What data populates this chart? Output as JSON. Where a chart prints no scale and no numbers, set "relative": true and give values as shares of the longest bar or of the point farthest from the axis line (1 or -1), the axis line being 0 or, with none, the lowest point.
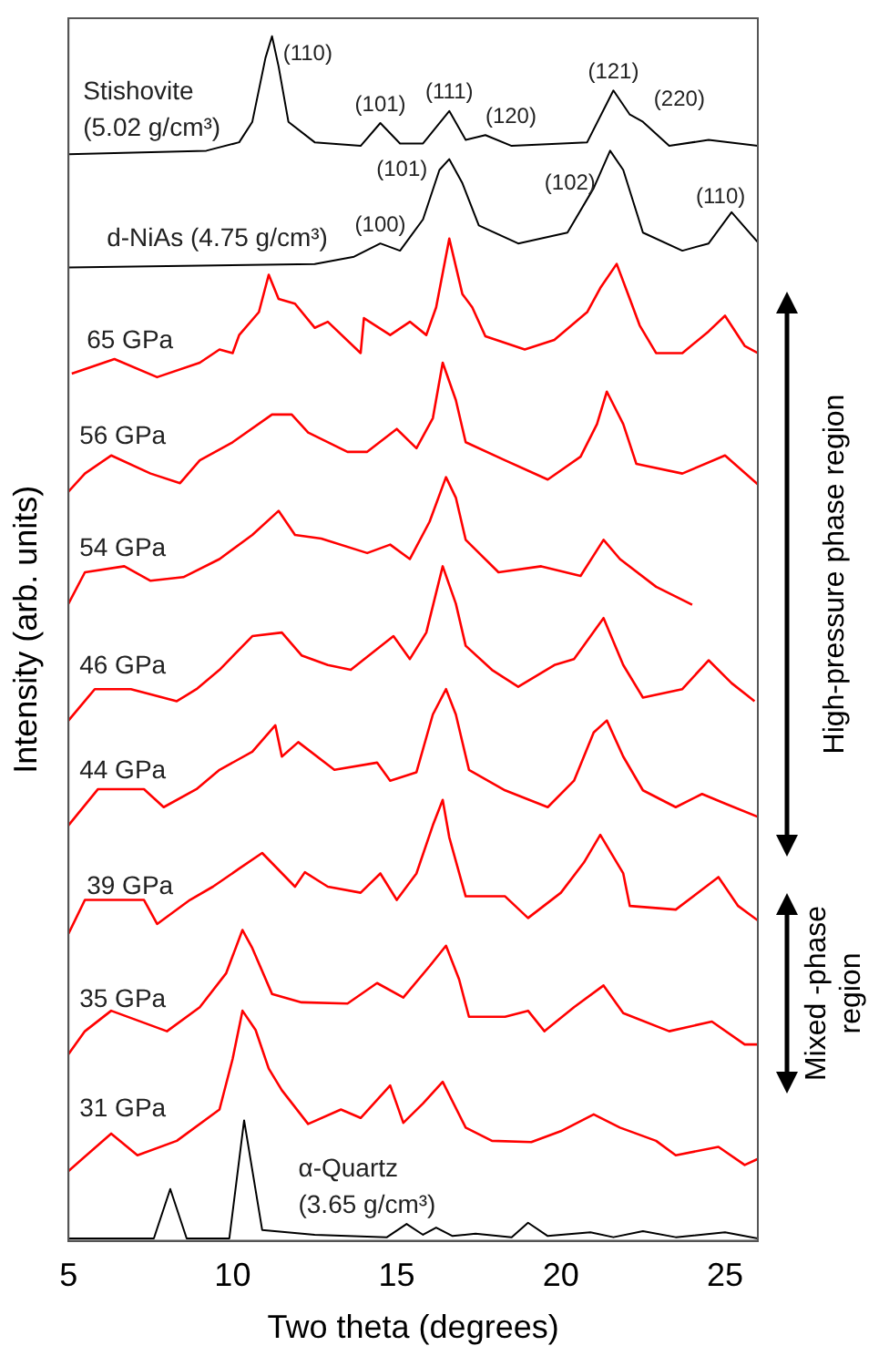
{
  "chart_data": {
    "type": "line",
    "relative": true,
    "xlabel": "Two theta (degrees)",
    "ylabel": "Intensity (arb. units)",
    "xlim": [
      5,
      26
    ],
    "xticks": [
      5,
      10,
      15,
      20,
      25
    ],
    "legend": false,
    "grid": false,
    "series": [
      {
        "name": "Stishovite\n(5.02 g/cm³)",
        "color": "#000000",
        "x": [
          5,
          9.2,
          10.2,
          10.6,
          11.0,
          11.2,
          11.4,
          11.7,
          12.5,
          13.9,
          14.5,
          15.1,
          15.8,
          16.6,
          17.1,
          17.7,
          18.5,
          20.8,
          21.6,
          22.1,
          22.5,
          23.3,
          24.5,
          26
        ],
        "values": [
          0.902,
          0.905,
          0.912,
          0.929,
          0.982,
          1,
          0.975,
          0.929,
          0.912,
          0.909,
          0.928,
          0.911,
          0.911,
          0.938,
          0.914,
          0.918,
          0.909,
          0.912,
          0.955,
          0.935,
          0.929,
          0.909,
          0.914,
          0.909
        ]
      },
      {
        "name": "d-NiAs (4.75 g/cm³)",
        "color": "#000000",
        "x": [
          5,
          12.5,
          13.7,
          14.5,
          15.1,
          15.8,
          16.3,
          16.6,
          17.0,
          17.5,
          18.7,
          20.2,
          21.0,
          21.5,
          21.9,
          22.5,
          23.7,
          24.5,
          25.2,
          26
        ],
        "values": [
          0.808,
          0.811,
          0.817,
          0.828,
          0.822,
          0.848,
          0.889,
          0.898,
          0.878,
          0.843,
          0.828,
          0.837,
          0.874,
          0.905,
          0.889,
          0.837,
          0.822,
          0.828,
          0.854,
          0.829
        ]
      },
      {
        "name": "65 GPa",
        "color": "#ff0000",
        "x": [
          5.1,
          6.4,
          7.7,
          9.0,
          9.6,
          10.0,
          10.2,
          10.8,
          11.1,
          11.4,
          11.9,
          12.5,
          12.9,
          13.9,
          14.0,
          14.8,
          15.4,
          15.9,
          16.2,
          16.6,
          17.0,
          17.3,
          17.7,
          18.9,
          19.8,
          20.8,
          21.2,
          21.7,
          22.1,
          22.4,
          22.9,
          23.7,
          24.5,
          25.0,
          25.6,
          26.0
        ],
        "values": [
          0.72,
          0.732,
          0.717,
          0.729,
          0.74,
          0.737,
          0.752,
          0.771,
          0.802,
          0.782,
          0.778,
          0.758,
          0.763,
          0.737,
          0.766,
          0.752,
          0.763,
          0.752,
          0.775,
          0.832,
          0.786,
          0.775,
          0.751,
          0.74,
          0.748,
          0.771,
          0.791,
          0.811,
          0.782,
          0.76,
          0.737,
          0.737,
          0.755,
          0.768,
          0.743,
          0.737
        ]
      },
      {
        "name": "56 GPa",
        "color": "#ff0000",
        "x": [
          5.0,
          5.5,
          6.3,
          7.5,
          8.4,
          9.0,
          10.0,
          11.2,
          11.8,
          12.3,
          13.5,
          14.1,
          15.0,
          15.6,
          16.1,
          16.4,
          16.8,
          17.1,
          18.3,
          19.6,
          20.6,
          21.1,
          21.4,
          21.9,
          22.3,
          23.7,
          25.0,
          26.0
        ],
        "values": [
          0.622,
          0.637,
          0.652,
          0.637,
          0.629,
          0.648,
          0.663,
          0.686,
          0.686,
          0.671,
          0.655,
          0.655,
          0.674,
          0.658,
          0.683,
          0.729,
          0.698,
          0.663,
          0.648,
          0.632,
          0.651,
          0.678,
          0.705,
          0.678,
          0.645,
          0.637,
          0.652,
          0.628
        ]
      },
      {
        "name": "54 GPa",
        "color": "#ff0000",
        "x": [
          5.0,
          5.5,
          6.7,
          7.5,
          8.5,
          9.6,
          10.6,
          11.4,
          11.9,
          12.7,
          14.1,
          14.8,
          15.4,
          16.0,
          16.5,
          16.8,
          17.1,
          18.1,
          19.4,
          20.6,
          21.3,
          21.8,
          22.9,
          24.0
        ],
        "values": [
          0.529,
          0.555,
          0.56,
          0.548,
          0.551,
          0.566,
          0.586,
          0.606,
          0.586,
          0.583,
          0.571,
          0.578,
          0.566,
          0.597,
          0.634,
          0.617,
          0.582,
          0.555,
          0.56,
          0.552,
          0.582,
          0.566,
          0.543,
          0.528
        ]
      },
      {
        "name": "46 GPa",
        "color": "#ff0000",
        "x": [
          5.0,
          5.8,
          6.9,
          8.3,
          8.9,
          9.6,
          10.6,
          11.5,
          12.1,
          12.9,
          13.6,
          14.9,
          15.4,
          15.9,
          16.4,
          16.8,
          17.1,
          17.9,
          18.7,
          19.8,
          20.4,
          21.3,
          21.9,
          22.5,
          23.7,
          24.5,
          25.2,
          25.9
        ],
        "values": [
          0.432,
          0.458,
          0.458,
          0.448,
          0.458,
          0.474,
          0.502,
          0.505,
          0.486,
          0.478,
          0.474,
          0.502,
          0.483,
          0.505,
          0.56,
          0.529,
          0.494,
          0.474,
          0.46,
          0.478,
          0.483,
          0.517,
          0.478,
          0.451,
          0.458,
          0.482,
          0.463,
          0.448
        ]
      },
      {
        "name": "44 GPa",
        "color": "#ff0000",
        "x": [
          5.0,
          5.9,
          7.3,
          7.9,
          8.9,
          9.6,
          10.6,
          11.3,
          11.5,
          12.0,
          13.1,
          14.4,
          14.8,
          15.6,
          16.1,
          16.5,
          16.8,
          17.2,
          18.3,
          19.6,
          20.4,
          21.0,
          21.4,
          21.9,
          22.5,
          23.5,
          24.3,
          25.0,
          26.0
        ],
        "values": [
          0.345,
          0.375,
          0.375,
          0.36,
          0.375,
          0.391,
          0.406,
          0.428,
          0.402,
          0.414,
          0.391,
          0.397,
          0.382,
          0.389,
          0.437,
          0.458,
          0.437,
          0.391,
          0.374,
          0.36,
          0.382,
          0.422,
          0.432,
          0.402,
          0.374,
          0.36,
          0.371,
          0.363,
          0.352
        ]
      },
      {
        "name": "39 GPa",
        "color": "#ff0000",
        "x": [
          5.0,
          5.5,
          7.3,
          7.7,
          8.7,
          9.4,
          10.2,
          10.9,
          11.9,
          12.2,
          12.9,
          13.9,
          14.5,
          15.0,
          15.6,
          16.1,
          16.4,
          16.6,
          17.1,
          18.3,
          19.0,
          20.0,
          20.7,
          21.2,
          21.9,
          22.1,
          23.5,
          24.8,
          25.4,
          26.0
        ],
        "values": [
          0.255,
          0.283,
          0.283,
          0.263,
          0.283,
          0.294,
          0.309,
          0.322,
          0.294,
          0.306,
          0.294,
          0.289,
          0.305,
          0.283,
          0.305,
          0.345,
          0.366,
          0.335,
          0.286,
          0.286,
          0.268,
          0.289,
          0.314,
          0.337,
          0.305,
          0.278,
          0.275,
          0.302,
          0.278,
          0.266
        ]
      },
      {
        "name": "35 GPa",
        "color": "#ff0000",
        "x": [
          5.0,
          5.5,
          6.3,
          8.0,
          9.0,
          9.8,
          10.3,
          10.6,
          11.2,
          12.1,
          13.5,
          14.4,
          15.2,
          16.0,
          16.5,
          16.9,
          17.2,
          18.3,
          19.0,
          19.5,
          20.4,
          21.3,
          21.9,
          23.3,
          24.6,
          25.6,
          26.0
        ],
        "values": [
          0.155,
          0.174,
          0.191,
          0.174,
          0.194,
          0.222,
          0.258,
          0.243,
          0.205,
          0.198,
          0.197,
          0.214,
          0.202,
          0.228,
          0.245,
          0.217,
          0.186,
          0.186,
          0.191,
          0.174,
          0.194,
          0.212,
          0.189,
          0.174,
          0.182,
          0.163,
          0.163
        ]
      },
      {
        "name": "31 GPa",
        "color": "#ff0000",
        "x": [
          5.0,
          6.3,
          7.1,
          8.3,
          9.6,
          10.0,
          10.3,
          10.7,
          11.1,
          11.5,
          12.3,
          13.3,
          13.9,
          14.8,
          15.2,
          15.8,
          16.4,
          17.1,
          17.9,
          19.1,
          20.0,
          21.0,
          21.8,
          22.9,
          23.5,
          24.8,
          25.6,
          26.0
        ],
        "values": [
          0.058,
          0.089,
          0.071,
          0.083,
          0.109,
          0.151,
          0.191,
          0.175,
          0.143,
          0.125,
          0.097,
          0.109,
          0.102,
          0.129,
          0.098,
          0.114,
          0.132,
          0.094,
          0.083,
          0.082,
          0.091,
          0.105,
          0.094,
          0.083,
          0.071,
          0.078,
          0.063,
          0.068
        ]
      },
      {
        "name": "α-Quartz\n(3.65 g/cm³)",
        "color": "#000000",
        "x": [
          5,
          7.6,
          8.1,
          8.6,
          9.9,
          10.35,
          10.9,
          12.5,
          14.7,
          15.3,
          15.8,
          16.2,
          16.7,
          17.4,
          18.5,
          19.0,
          19.6,
          20.9,
          21.6,
          22.5,
          23.5,
          25.0,
          26
        ],
        "values": [
          0.002,
          0.002,
          0.043,
          0.002,
          0.002,
          0.1,
          0.009,
          0.005,
          0.003,
          0.014,
          0.005,
          0.011,
          0.004,
          0.006,
          0.003,
          0.015,
          0.004,
          0.007,
          0.003,
          0.008,
          0.003,
          0.007,
          0.002
        ]
      }
    ],
    "annotations": [
      {
        "text": "(110)",
        "x": 11.2,
        "y": 1
      },
      {
        "text": "(101)",
        "x": 14.5,
        "y": 0.928
      },
      {
        "text": "(111)",
        "x": 16.6,
        "y": 0.938
      },
      {
        "text": "(120)",
        "x": 17.7,
        "y": 0.918
      },
      {
        "text": "(121)",
        "x": 21.6,
        "y": 0.955
      },
      {
        "text": "(220)",
        "x": 22.5,
        "y": 0.929
      },
      {
        "text": "(100)",
        "x": 14.5,
        "y": 0.828
      },
      {
        "text": "(101)",
        "x": 16.6,
        "y": 0.898
      },
      {
        "text": "(102)",
        "x": 21.5,
        "y": 0.905
      },
      {
        "text": "(110)",
        "x": 25.2,
        "y": 0.854
      },
      "High-pressure phase region",
      "Mixed -phase region"
    ]
  }
}
